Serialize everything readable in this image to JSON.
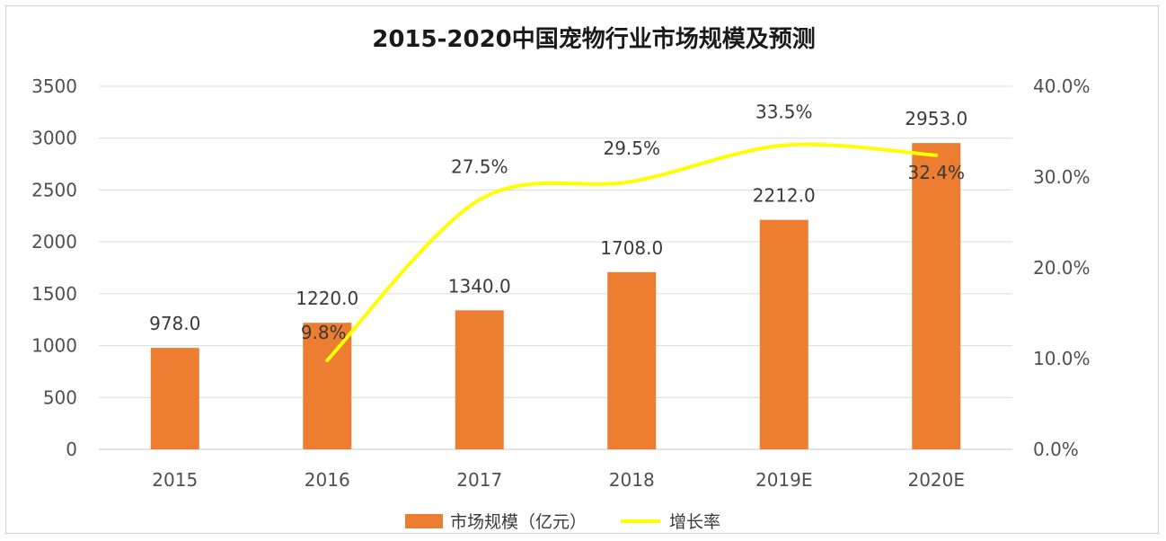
{
  "chart_data": {
    "type": "bar",
    "title": "2015-2020中国宠物行业市场规模及预测",
    "categories": [
      "2015",
      "2016",
      "2017",
      "2018",
      "2019E",
      "2020E"
    ],
    "series": [
      {
        "name": "市场规模（亿元）",
        "type": "bar",
        "axis": "left",
        "color": "#ed7d31",
        "values": [
          978.0,
          1220.0,
          1340.0,
          1708.0,
          2212.0,
          2953.0
        ],
        "labels": [
          "978.0",
          "1220.0",
          "1340.0",
          "1708.0",
          "2212.0",
          "2953.0"
        ]
      },
      {
        "name": "增长率",
        "type": "line",
        "axis": "right",
        "color": "#ffff00",
        "values": [
          null,
          9.8,
          27.5,
          29.5,
          33.5,
          32.4
        ],
        "labels": [
          "",
          "9.8%",
          "27.5%",
          "29.5%",
          "33.5%",
          "32.4%"
        ]
      }
    ],
    "y_left": {
      "min": 0,
      "max": 3500,
      "ticks": [
        "0",
        "500",
        "1000",
        "1500",
        "2000",
        "2500",
        "3000",
        "3500"
      ]
    },
    "y_right": {
      "min": 0,
      "max": 40,
      "ticks": [
        "0.0%",
        "10.0%",
        "20.0%",
        "30.0%",
        "40.0%"
      ]
    },
    "grid": true,
    "legend_position": "bottom"
  }
}
